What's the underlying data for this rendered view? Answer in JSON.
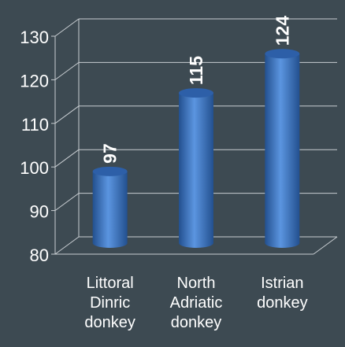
{
  "chart_data": {
    "type": "bar",
    "categories": [
      [
        "Littoral",
        "Dinric",
        "donkey"
      ],
      [
        "North",
        "Adriatic",
        "donkey"
      ],
      [
        "Istrian",
        "donkey"
      ]
    ],
    "values": [
      97,
      115,
      124
    ],
    "data_labels": [
      "97",
      "115",
      "124"
    ],
    "y_ticks": [
      "80",
      "90",
      "100",
      "110",
      "120",
      "130"
    ],
    "ylim": [
      80,
      130
    ],
    "grid": true,
    "title": "",
    "xlabel": "",
    "ylabel": "",
    "colors": {
      "background": "#3d4a52",
      "bar": "#3b74c4",
      "bar_light": "#5b95e0",
      "bar_dark": "#23508f",
      "bar_top": "#2d5fa8",
      "grid": "#c9ced2",
      "text": "#ffffff"
    }
  }
}
